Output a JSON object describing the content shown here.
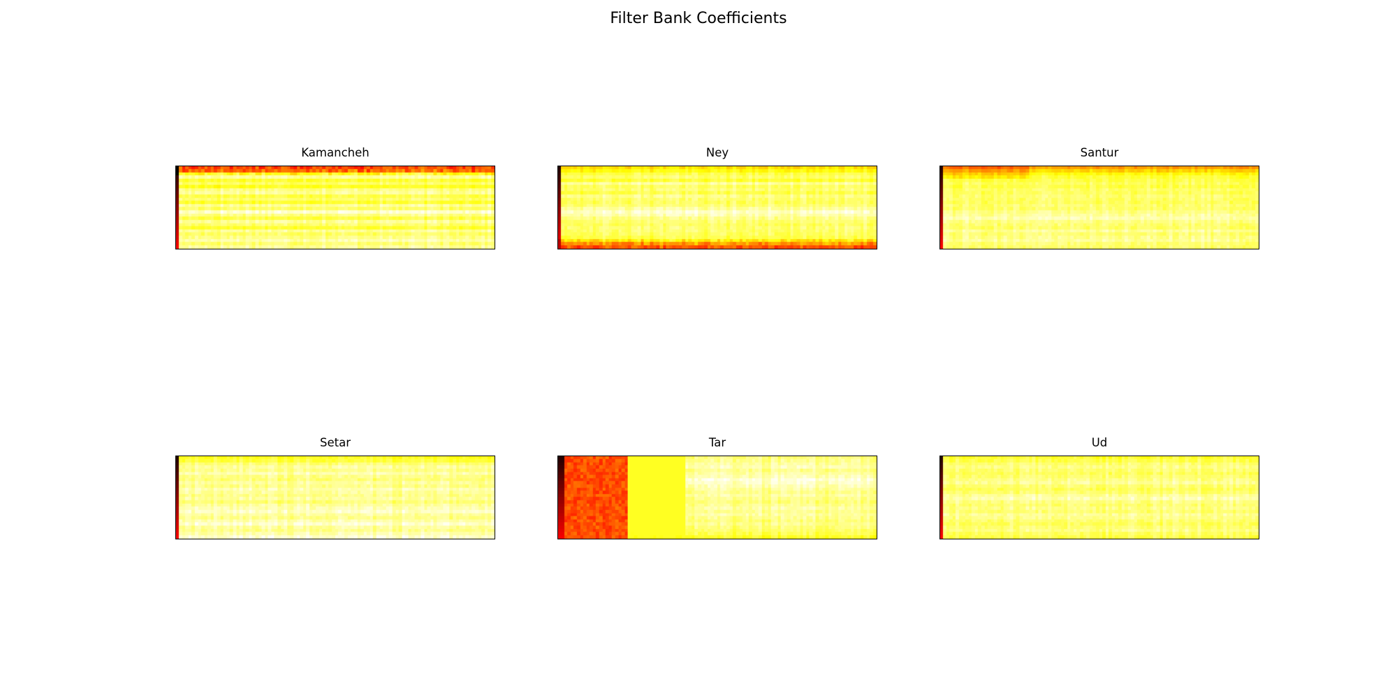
{
  "figure": {
    "title": "Filter Bank Coefficients"
  },
  "chart_data": [
    {
      "type": "heatmap",
      "title": "Kamancheh",
      "colormap": "hot",
      "axes_visible": false,
      "grid": false,
      "n_rows": 26,
      "n_cols": 100,
      "dark_columns": [
        0
      ],
      "pattern": [
        0.55,
        0.6,
        0.85,
        0.9,
        0.8,
        0.85,
        0.78,
        0.88,
        0.9,
        0.82,
        0.86,
        0.8,
        0.9,
        0.85,
        0.95,
        0.88,
        0.82,
        0.9,
        0.86,
        0.8,
        0.9,
        0.85,
        0.88,
        0.92,
        0.86,
        0.9
      ],
      "value_range": [
        0,
        1
      ]
    },
    {
      "type": "heatmap",
      "title": "Ney",
      "colormap": "hot",
      "axes_visible": false,
      "grid": false,
      "n_rows": 26,
      "n_cols": 100,
      "dark_columns": [
        0
      ],
      "pattern": [
        0.7,
        0.75,
        0.82,
        0.85,
        0.8,
        0.9,
        0.84,
        0.86,
        0.82,
        0.88,
        0.85,
        0.84,
        0.86,
        0.9,
        0.95,
        0.92,
        0.88,
        0.86,
        0.84,
        0.86,
        0.85,
        0.84,
        0.82,
        0.78,
        0.65,
        0.55
      ],
      "value_range": [
        0,
        1
      ]
    },
    {
      "type": "heatmap",
      "title": "Santur",
      "colormap": "hot",
      "axes_visible": false,
      "grid": false,
      "n_rows": 26,
      "n_cols": 100,
      "dark_columns": [
        0
      ],
      "pattern": [
        0.6,
        0.68,
        0.75,
        0.8,
        0.82,
        0.84,
        0.82,
        0.85,
        0.84,
        0.86,
        0.85,
        0.84,
        0.86,
        0.85,
        0.88,
        0.9,
        0.92,
        0.88,
        0.86,
        0.85,
        0.9,
        0.86,
        0.88,
        0.9,
        0.86,
        0.85
      ],
      "value_range": [
        0,
        1
      ]
    },
    {
      "type": "heatmap",
      "title": "Setar",
      "colormap": "hot",
      "axes_visible": false,
      "grid": false,
      "n_rows": 26,
      "n_cols": 100,
      "dark_columns": [
        0
      ],
      "pattern": [
        0.78,
        0.8,
        0.86,
        0.9,
        0.88,
        0.92,
        0.88,
        0.86,
        0.9,
        0.88,
        0.92,
        0.9,
        0.88,
        0.9,
        0.86,
        0.9,
        0.92,
        0.94,
        0.9,
        0.88,
        0.92,
        0.95,
        0.9,
        0.88,
        0.92,
        0.95
      ],
      "value_range": [
        0,
        1
      ]
    },
    {
      "type": "heatmap",
      "title": "Tar",
      "colormap": "hot",
      "axes_visible": false,
      "grid": false,
      "n_rows": 26,
      "n_cols": 100,
      "dark_columns": [
        0,
        1
      ],
      "pattern": [
        0.86,
        0.88,
        0.9,
        0.92,
        0.88,
        0.9,
        0.92,
        0.96,
        0.94,
        0.92,
        0.9,
        0.88,
        0.9,
        0.88,
        0.86,
        0.88,
        0.9,
        0.88,
        0.9,
        0.88,
        0.86,
        0.88,
        0.86,
        0.84,
        0.82,
        0.78
      ],
      "value_range": [
        0,
        1
      ]
    },
    {
      "type": "heatmap",
      "title": "Ud",
      "colormap": "hot",
      "axes_visible": false,
      "grid": false,
      "n_rows": 26,
      "n_cols": 100,
      "dark_columns": [
        0
      ],
      "pattern": [
        0.8,
        0.82,
        0.86,
        0.88,
        0.86,
        0.84,
        0.86,
        0.88,
        0.9,
        0.86,
        0.84,
        0.86,
        0.9,
        0.92,
        0.88,
        0.86,
        0.88,
        0.86,
        0.9,
        0.88,
        0.86,
        0.84,
        0.86,
        0.88,
        0.84,
        0.82
      ],
      "value_range": [
        0,
        1
      ]
    }
  ]
}
